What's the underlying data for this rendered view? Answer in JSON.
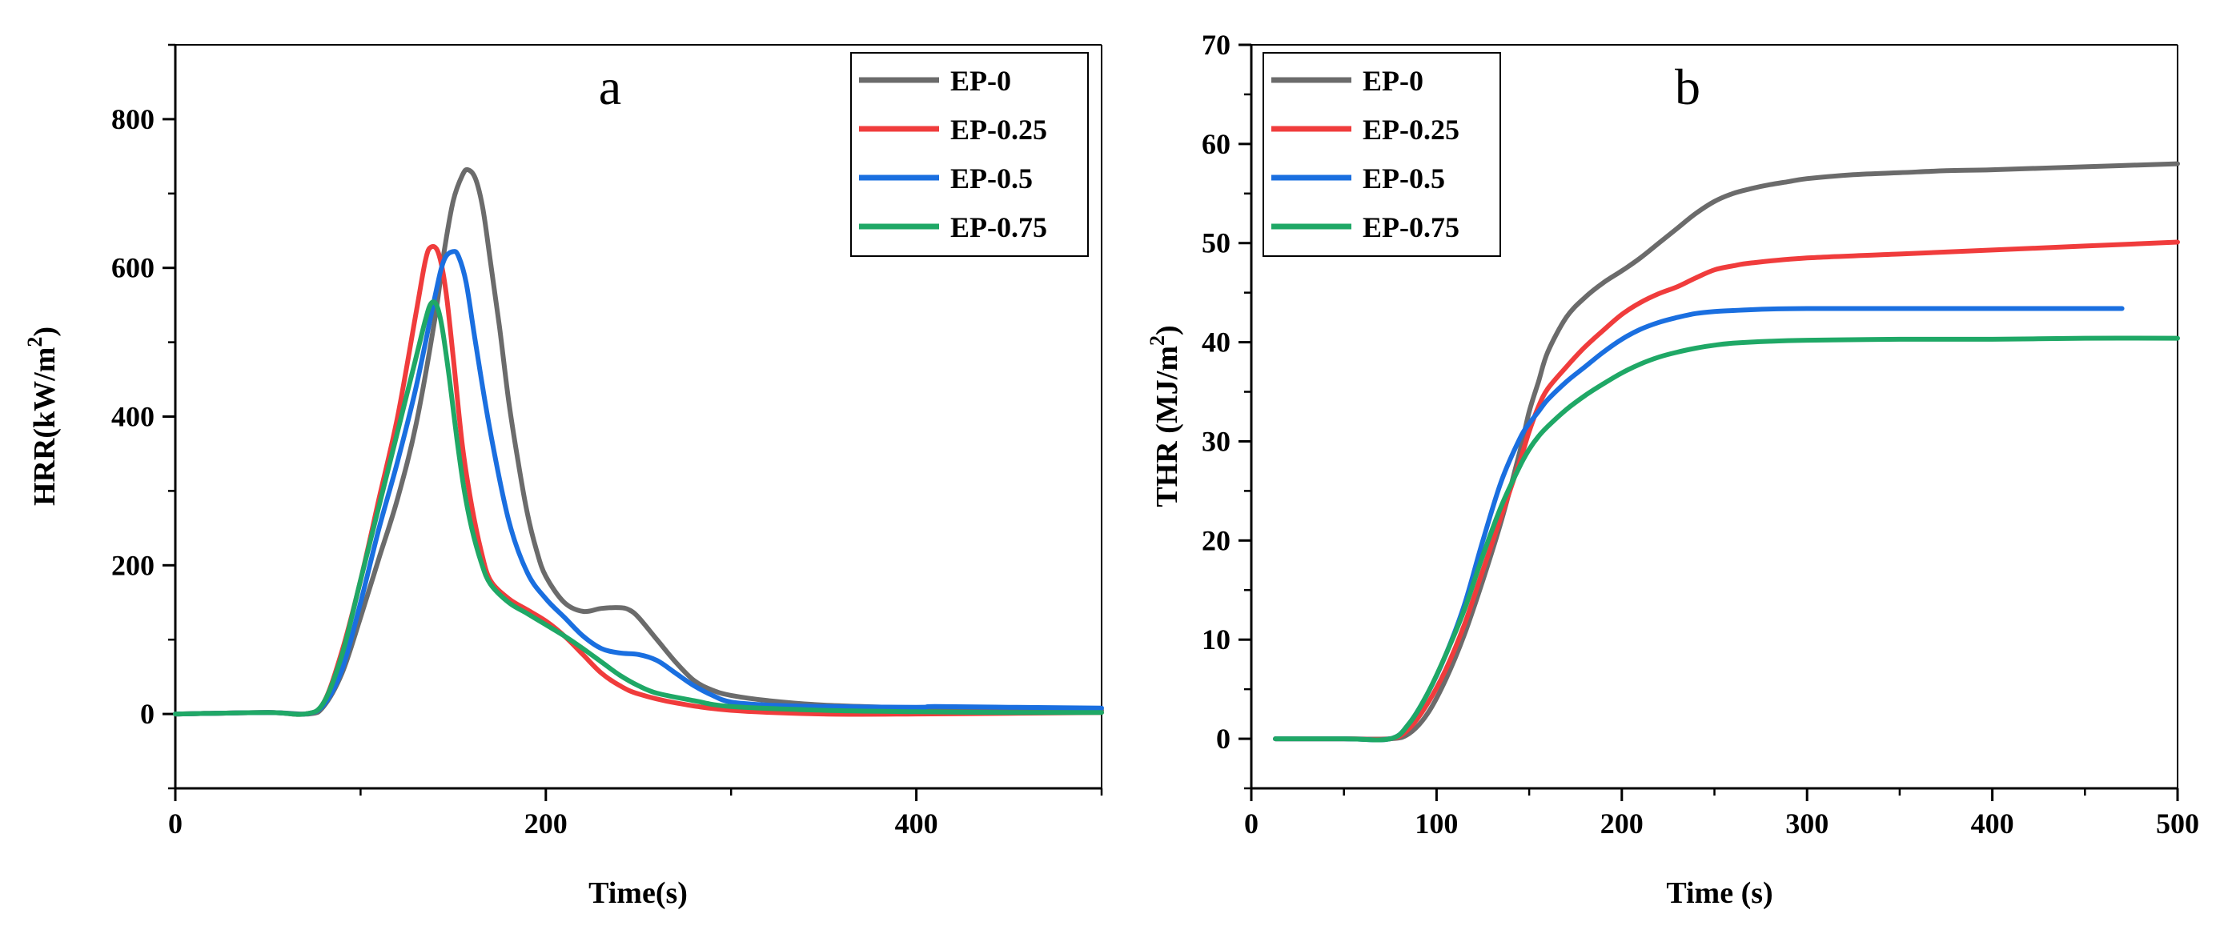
{
  "chart_data": [
    {
      "type": "line",
      "panel_letter": "a",
      "xlabel": "Time(s)",
      "ylabel_main": "HRR(kW/m",
      "ylabel_sup": "2",
      "ylabel_close": ")",
      "xlim": [
        0,
        500
      ],
      "ylim": [
        -100,
        900
      ],
      "xticks": [
        0,
        200,
        400
      ],
      "xtick_labels": [
        "0",
        "200",
        "400"
      ],
      "xminor": [
        100,
        300,
        500
      ],
      "yticks": [
        0,
        200,
        400,
        600,
        800
      ],
      "ytick_labels": [
        "0",
        "200",
        "400",
        "600",
        "800"
      ],
      "yminor": [
        -100,
        100,
        300,
        500,
        700,
        900
      ],
      "legend_position": "top-right",
      "series": [
        {
          "name": "EP-0",
          "color": "#6b6b6b",
          "x": [
            0,
            50,
            72,
            80,
            90,
            100,
            110,
            120,
            130,
            140,
            145,
            150,
            155,
            158,
            162,
            166,
            170,
            175,
            180,
            185,
            190,
            195,
            200,
            210,
            220,
            230,
            240,
            245,
            250,
            260,
            270,
            280,
            290,
            300,
            320,
            350,
            400,
            450,
            500
          ],
          "y": [
            0,
            2,
            0,
            10,
            55,
            130,
            210,
            290,
            390,
            530,
            620,
            690,
            725,
            732,
            720,
            680,
            610,
            520,
            420,
            340,
            270,
            220,
            185,
            150,
            138,
            142,
            143,
            140,
            130,
            100,
            70,
            45,
            32,
            25,
            18,
            12,
            8,
            6,
            5
          ]
        },
        {
          "name": "EP-0.25",
          "color": "#f03c3c",
          "x": [
            0,
            50,
            70,
            80,
            90,
            100,
            110,
            120,
            130,
            135,
            138,
            142,
            146,
            150,
            155,
            160,
            165,
            170,
            180,
            190,
            200,
            210,
            220,
            230,
            240,
            250,
            270,
            300,
            350,
            400,
            450,
            500
          ],
          "y": [
            0,
            2,
            0,
            15,
            85,
            180,
            290,
            400,
            540,
            610,
            628,
            620,
            570,
            480,
            360,
            280,
            220,
            180,
            155,
            140,
            125,
            105,
            80,
            55,
            38,
            27,
            15,
            5,
            0,
            0,
            1,
            2
          ]
        },
        {
          "name": "EP-0.5",
          "color": "#1a6fe0",
          "x": [
            0,
            50,
            70,
            80,
            90,
            100,
            110,
            120,
            130,
            140,
            145,
            150,
            153,
            157,
            162,
            170,
            180,
            190,
            200,
            210,
            220,
            230,
            240,
            250,
            260,
            270,
            280,
            290,
            300,
            320,
            350,
            400,
            410,
            450,
            500
          ],
          "y": [
            0,
            2,
            0,
            12,
            60,
            150,
            250,
            340,
            440,
            560,
            610,
            622,
            615,
            580,
            500,
            380,
            260,
            190,
            155,
            130,
            105,
            88,
            82,
            80,
            72,
            55,
            38,
            25,
            16,
            12,
            10,
            9,
            10,
            9,
            8
          ]
        },
        {
          "name": "EP-0.75",
          "color": "#1fa866",
          "x": [
            0,
            50,
            70,
            80,
            90,
            100,
            110,
            120,
            130,
            135,
            138,
            141,
            144,
            148,
            152,
            156,
            160,
            165,
            170,
            180,
            190,
            200,
            210,
            220,
            230,
            240,
            250,
            260,
            280,
            300,
            350,
            400,
            450,
            500
          ],
          "y": [
            0,
            2,
            0,
            15,
            80,
            180,
            280,
            380,
            480,
            530,
            552,
            550,
            520,
            450,
            370,
            300,
            250,
            205,
            175,
            150,
            135,
            120,
            105,
            88,
            70,
            52,
            38,
            28,
            18,
            10,
            5,
            3,
            2,
            2
          ]
        }
      ],
      "legend_labels": [
        "EP-0",
        "EP-0.25",
        "EP-0.5",
        "EP-0.75"
      ]
    },
    {
      "type": "line",
      "panel_letter": "b",
      "xlabel": "Time (s)",
      "ylabel_main": "THR (MJ/m",
      "ylabel_sup": "2",
      "ylabel_close": ")",
      "xlim": [
        0,
        500
      ],
      "ylim": [
        -5,
        70
      ],
      "xticks": [
        0,
        100,
        200,
        300,
        400,
        500
      ],
      "xtick_labels": [
        "0",
        "100",
        "200",
        "300",
        "400",
        "500"
      ],
      "xminor": [
        50,
        150,
        250,
        350,
        450
      ],
      "yticks": [
        0,
        10,
        20,
        30,
        40,
        50,
        60,
        70
      ],
      "ytick_labels": [
        "0",
        "10",
        "20",
        "30",
        "40",
        "50",
        "60",
        "70"
      ],
      "yminor": [
        -5,
        5,
        15,
        25,
        35,
        45,
        55,
        65
      ],
      "legend_position": "top-left",
      "series": [
        {
          "name": "EP-0",
          "color": "#6b6b6b",
          "x": [
            13,
            50,
            75,
            85,
            95,
            105,
            115,
            125,
            135,
            145,
            150,
            155,
            160,
            170,
            180,
            190,
            200,
            210,
            220,
            230,
            240,
            250,
            260,
            270,
            280,
            290,
            300,
            325,
            350,
            375,
            400,
            450,
            500
          ],
          "y": [
            0,
            0,
            0,
            0.5,
            2.5,
            6,
            10.5,
            16,
            22,
            29,
            33,
            36,
            39,
            42.5,
            44.5,
            46,
            47.2,
            48.5,
            50,
            51.5,
            53,
            54.2,
            55,
            55.5,
            55.9,
            56.2,
            56.5,
            56.9,
            57.1,
            57.3,
            57.4,
            57.7,
            58
          ]
        },
        {
          "name": "EP-0.25",
          "color": "#f03c3c",
          "x": [
            13,
            50,
            75,
            85,
            95,
            105,
            115,
            125,
            135,
            145,
            150,
            155,
            160,
            170,
            180,
            190,
            200,
            210,
            220,
            230,
            240,
            250,
            260,
            270,
            300,
            350,
            400,
            450,
            500
          ],
          "y": [
            0,
            0,
            0,
            1,
            3.5,
            7,
            11.5,
            17,
            22.5,
            28,
            31,
            33.5,
            35.3,
            37.5,
            39.5,
            41.2,
            42.8,
            44,
            44.9,
            45.6,
            46.5,
            47.3,
            47.7,
            48,
            48.5,
            48.9,
            49.3,
            49.7,
            50.1
          ]
        },
        {
          "name": "EP-0.5",
          "color": "#1a6fe0",
          "x": [
            13,
            50,
            75,
            85,
            95,
            105,
            115,
            125,
            135,
            145,
            150,
            155,
            160,
            170,
            180,
            190,
            200,
            210,
            220,
            230,
            240,
            250,
            260,
            280,
            300,
            350,
            400,
            470
          ],
          "y": [
            0,
            0,
            0,
            1.5,
            4.5,
            8.5,
            13.5,
            20,
            26,
            30.3,
            31.8,
            33,
            34.2,
            36,
            37.5,
            39,
            40.3,
            41.3,
            42,
            42.5,
            42.9,
            43.1,
            43.2,
            43.35,
            43.4,
            43.4,
            43.4,
            43.4
          ]
        },
        {
          "name": "EP-0.75",
          "color": "#1fa866",
          "x": [
            13,
            50,
            75,
            85,
            95,
            105,
            115,
            125,
            135,
            145,
            150,
            155,
            160,
            170,
            180,
            190,
            200,
            210,
            220,
            230,
            240,
            250,
            260,
            280,
            300,
            350,
            400,
            450,
            500
          ],
          "y": [
            0,
            0,
            0,
            1.5,
            4.5,
            8.5,
            13,
            18.5,
            23.5,
            27.5,
            29.2,
            30.5,
            31.5,
            33.2,
            34.6,
            35.8,
            36.9,
            37.8,
            38.5,
            39,
            39.4,
            39.7,
            39.9,
            40.1,
            40.2,
            40.3,
            40.3,
            40.4,
            40.4
          ]
        }
      ],
      "legend_labels": [
        "EP-0",
        "EP-0.25",
        "EP-0.5",
        "EP-0.75"
      ]
    }
  ]
}
